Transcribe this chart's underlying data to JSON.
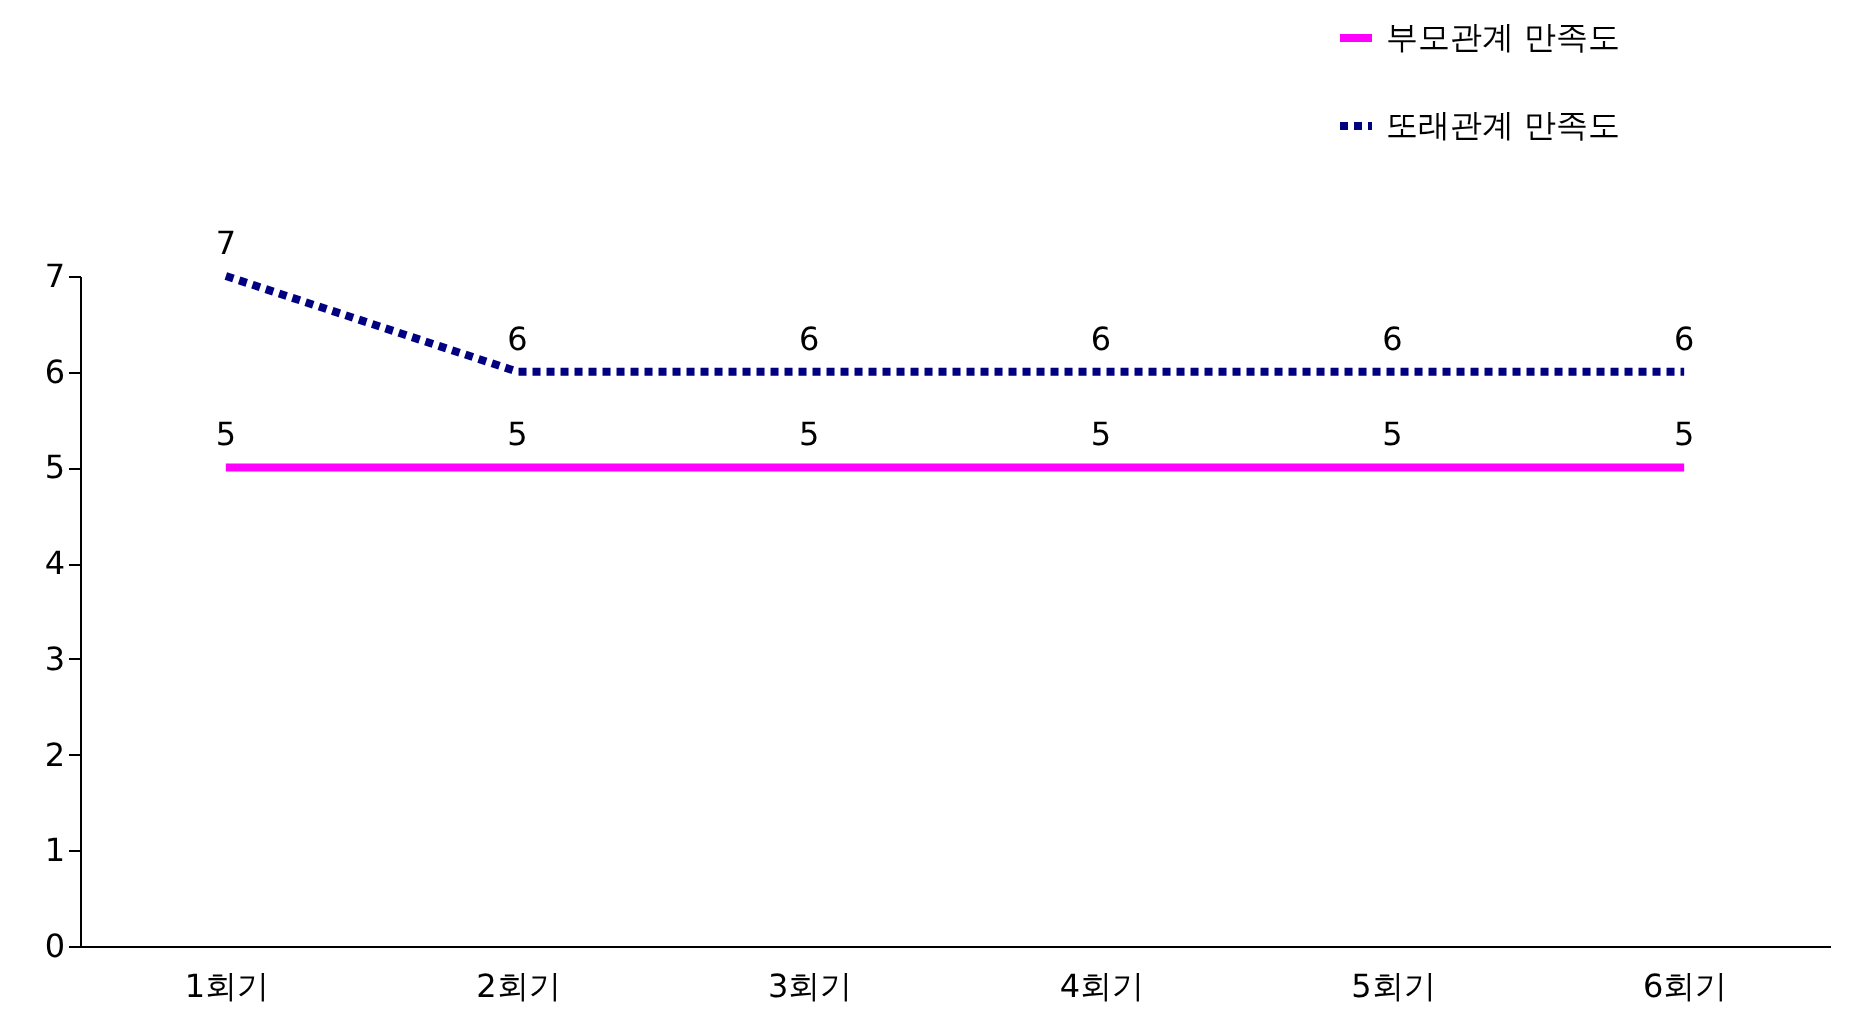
{
  "chart_data": {
    "type": "line",
    "categories": [
      "1회기",
      "2회기",
      "3회기",
      "4회기",
      "5회기",
      "6회기"
    ],
    "series": [
      {
        "name": "부모관계 만족도",
        "color": "#ff00ff",
        "line_style": "solid",
        "values": [
          5,
          5,
          5,
          5,
          5,
          5
        ]
      },
      {
        "name": "또래관계 만족도",
        "color": "#000080",
        "line_style": "dotted",
        "values": [
          7,
          6,
          6,
          6,
          6,
          6
        ]
      }
    ],
    "ylim": [
      0,
      7
    ],
    "yticks": [
      0,
      1,
      2,
      3,
      4,
      5,
      6,
      7
    ],
    "grid": false,
    "legend": "top right",
    "marker": "none",
    "data_labels": true
  }
}
